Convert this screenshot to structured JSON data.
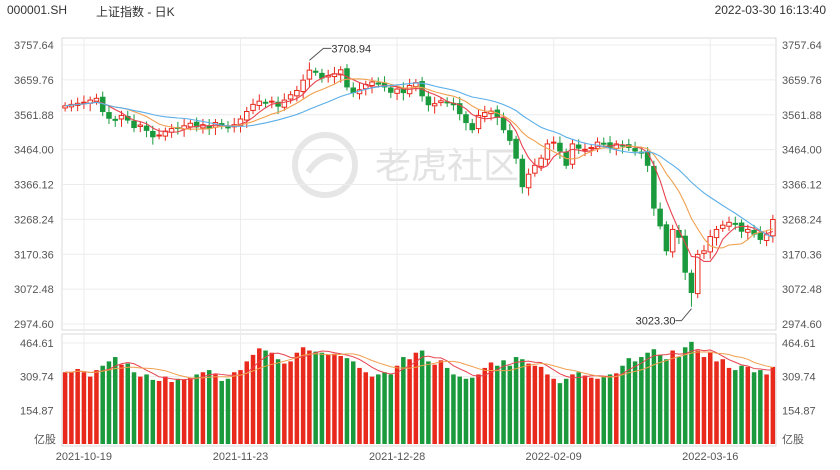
{
  "header": {
    "symbol": "000001.SH",
    "name": "上证指数 - 日K",
    "datetime": "2022-03-30 16:13:40"
  },
  "watermark": {
    "text": "老虎社区"
  },
  "colors": {
    "up": "#e8291c",
    "down": "#1a9a3c",
    "ma5": "#e8414d",
    "ma10": "#f0a050",
    "ma20": "#5aaee8",
    "grid": "#ececec",
    "axis": "#555555"
  },
  "chart_data": {
    "type": "candlestick",
    "price_axis": {
      "ticks": [
        "3757.64",
        "3659.76",
        "3561.88",
        "3464.00",
        "3366.12",
        "3268.24",
        "3170.36",
        "3072.48",
        "2974.60"
      ],
      "min": 2974.6,
      "max": 3757.64
    },
    "volume_axis": {
      "ticks": [
        "464.61",
        "309.74",
        "154.87"
      ],
      "unit": "亿股",
      "max": 464.61
    },
    "x_labels": [
      "2021-10-19",
      "2021-11-23",
      "2021-12-28",
      "2022-02-09",
      "2022-03-16"
    ],
    "x_label_index": [
      3,
      28,
      53,
      78,
      103
    ],
    "annotations": [
      {
        "label": "3708.94",
        "index": 39,
        "value": 3708.94,
        "kind": "high"
      },
      {
        "label": "3023.30",
        "index": 100,
        "value": 3023.3,
        "kind": "low"
      }
    ],
    "series_names": [
      "MA5",
      "MA10",
      "MA20"
    ],
    "closes": [
      3587,
      3591,
      3594,
      3597,
      3603,
      3608,
      3571,
      3552,
      3547,
      3560,
      3547,
      3526,
      3533,
      3518,
      3500,
      3505,
      3516,
      3523,
      3525,
      3531,
      3538,
      3528,
      3534,
      3524,
      3540,
      3531,
      3525,
      3534,
      3550,
      3571,
      3591,
      3600,
      3596,
      3600,
      3586,
      3603,
      3618,
      3630,
      3659,
      3687,
      3681,
      3665,
      3672,
      3677,
      3688,
      3640,
      3624,
      3632,
      3647,
      3654,
      3648,
      3640,
      3625,
      3634,
      3624,
      3644,
      3652,
      3615,
      3590,
      3593,
      3601,
      3597,
      3590,
      3565,
      3540,
      3520,
      3560,
      3568,
      3572,
      3555,
      3520,
      3490,
      3440,
      3360,
      3395,
      3420,
      3440,
      3480,
      3485,
      3460,
      3420,
      3480,
      3468,
      3465,
      3470,
      3485,
      3480,
      3470,
      3480,
      3475,
      3470,
      3460,
      3455,
      3420,
      3300,
      3250,
      3180,
      3240,
      3218,
      3120,
      3063,
      3170,
      3180,
      3220,
      3240,
      3252,
      3260,
      3255,
      3235,
      3240,
      3227,
      3212,
      3225,
      3268
    ],
    "volumes": [
      330,
      330,
      345,
      330,
      310,
      340,
      360,
      380,
      400,
      365,
      370,
      330,
      310,
      320,
      295,
      290,
      310,
      285,
      300,
      295,
      305,
      320,
      330,
      340,
      320,
      290,
      300,
      330,
      340,
      380,
      410,
      440,
      430,
      420,
      390,
      370,
      380,
      420,
      445,
      430,
      425,
      420,
      410,
      415,
      405,
      395,
      380,
      350,
      330,
      310,
      320,
      330,
      320,
      360,
      400,
      390,
      420,
      430,
      380,
      365,
      385,
      350,
      320,
      310,
      300,
      305,
      320,
      350,
      375,
      360,
      385,
      360,
      400,
      390,
      370,
      360,
      355,
      320,
      300,
      280,
      300,
      320,
      330,
      315,
      305,
      300,
      310,
      320,
      325,
      360,
      395,
      380,
      400,
      420,
      436,
      410,
      390,
      430,
      400,
      445,
      470,
      430,
      400,
      420,
      380,
      390,
      350,
      340,
      360,
      355,
      330,
      340,
      320,
      355
    ]
  }
}
